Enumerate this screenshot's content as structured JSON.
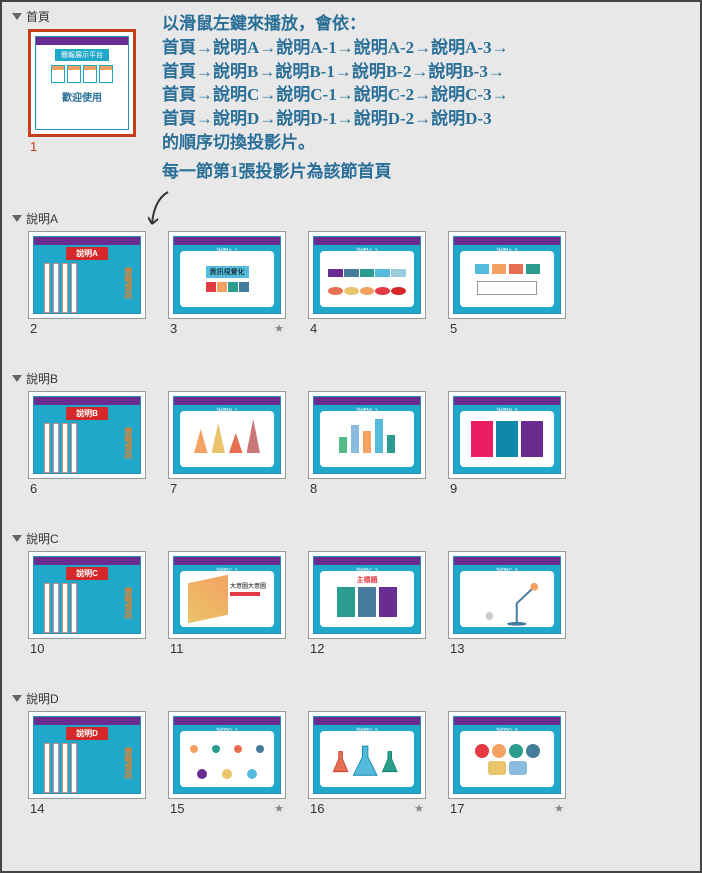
{
  "annotations": {
    "line1": "以滑鼠左鍵來播放，會依：",
    "line2": "首頁→說明A→說明A-1→說明A-2→說明A-3→",
    "line3": "首頁→說明B→說明B-1→說明B-2→說明B-3→",
    "line4": "首頁→說明C→說明C-1→說明C-2→說明C-3→",
    "line5": "首頁→說明D→說明D-1→說明D-2→說明D-3",
    "line6": "的順序切換投影片。",
    "line7": "每一節第1張投影片為該節首頁"
  },
  "colors": {
    "background": "#e8e8e8",
    "selected_border": "#c43e1c",
    "annotation_text": "#2a6f97",
    "purple_header": "#6b2c91",
    "teal_body": "#1fa8c9",
    "red_title": "#d62828"
  },
  "first_slide": {
    "platform_label": "簡報展示平台",
    "welcome": "歡迎使用",
    "number": "1"
  },
  "sections": [
    {
      "name": "首頁",
      "slides": [
        {
          "num": "1",
          "selected": true,
          "star": false
        }
      ]
    },
    {
      "name": "說明A",
      "slides": [
        {
          "num": "2",
          "title": "說明A",
          "star": false,
          "kind": "section-title",
          "side_text": "簡略資訊"
        },
        {
          "num": "3",
          "title": "說明A-1",
          "star": true,
          "kind": "content-colorful",
          "subtitle": "資訊視覺化"
        },
        {
          "num": "4",
          "title": "說明A-2",
          "star": false,
          "kind": "content-timeline"
        },
        {
          "num": "5",
          "title": "說明A-3",
          "star": false,
          "kind": "content-boxes"
        }
      ]
    },
    {
      "name": "說明B",
      "slides": [
        {
          "num": "6",
          "title": "說明B",
          "star": false,
          "kind": "section-title",
          "side_text": "簡略資訊"
        },
        {
          "num": "7",
          "title": "說明B-1",
          "star": false,
          "kind": "content-pyramids"
        },
        {
          "num": "8",
          "title": "說明B-2",
          "star": false,
          "kind": "content-bars"
        },
        {
          "num": "9",
          "title": "說明B-3",
          "star": false,
          "kind": "content-panels"
        }
      ]
    },
    {
      "name": "說明C",
      "slides": [
        {
          "num": "10",
          "title": "說明C",
          "star": false,
          "kind": "section-title",
          "side_text": "簡略資訊"
        },
        {
          "num": "11",
          "title": "說明C-1",
          "star": false,
          "kind": "content-3dbars",
          "subtitle": "大意圖大意圖"
        },
        {
          "num": "12",
          "title": "說明C-2",
          "star": false,
          "kind": "content-columns",
          "subtitle": "主標題"
        },
        {
          "num": "13",
          "title": "說明C-3",
          "star": false,
          "kind": "content-lamp"
        }
      ]
    },
    {
      "name": "說明D",
      "slides": [
        {
          "num": "14",
          "title": "說明D",
          "star": false,
          "kind": "section-title",
          "side_text": "簡略資訊"
        },
        {
          "num": "15",
          "title": "說明D-1",
          "star": true,
          "kind": "content-dna"
        },
        {
          "num": "16",
          "title": "說明D-2",
          "star": true,
          "kind": "content-flask"
        },
        {
          "num": "17",
          "title": "說明D-3",
          "star": true,
          "kind": "content-bubbles"
        }
      ]
    }
  ]
}
